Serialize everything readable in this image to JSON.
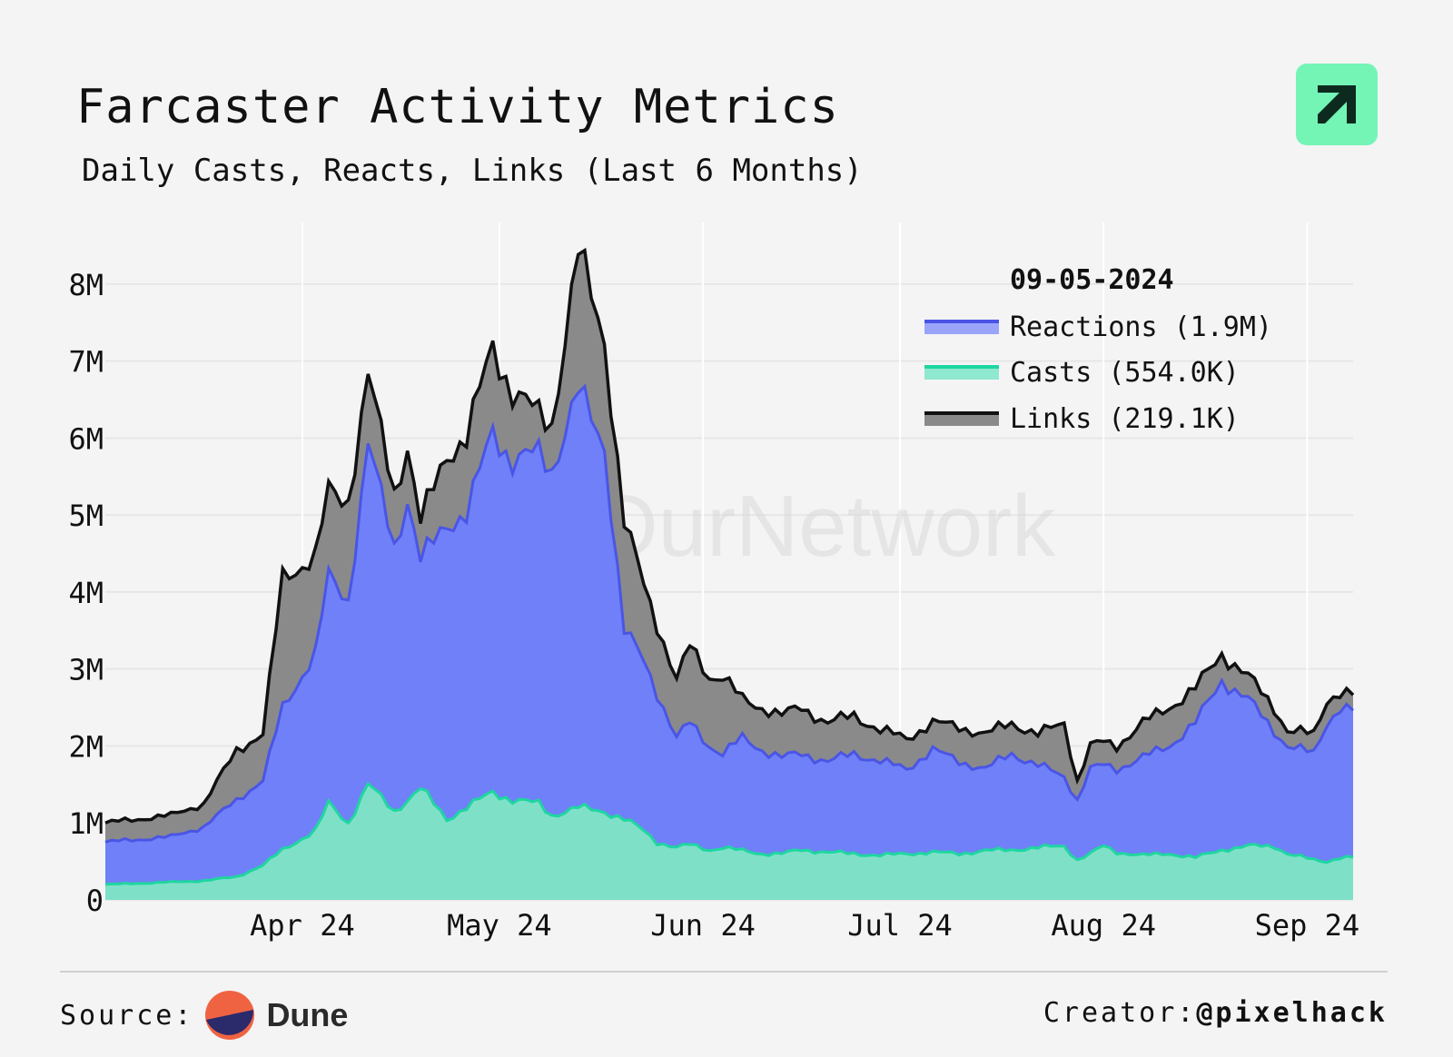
{
  "header": {
    "title": "Farcaster Activity Metrics",
    "subtitle": "Daily Casts, Reacts, Links (Last 6 Months)"
  },
  "footer": {
    "source_label": "Source:",
    "source_name": "Dune",
    "creator_label": "Creator:",
    "creator_handle": "@pixelhack"
  },
  "watermark": "OurNetwork",
  "colors": {
    "reactions": "#7080f8",
    "reactions_line": "#4a55e6",
    "casts": "#7fe0c8",
    "casts_line": "#1fd6a0",
    "links": "#8a8a8a",
    "links_line": "#111111",
    "logo": "#74f5b6"
  },
  "chart_data": {
    "type": "area",
    "stacked": true,
    "title": "Farcaster Activity Metrics",
    "subtitle": "Daily Casts, Reacts, Links (Last 6 Months)",
    "x_tick_labels": [
      "Apr 24",
      "May 24",
      "Jun 24",
      "Jul 24",
      "Aug 24",
      "Sep 24"
    ],
    "y_tick_labels": [
      "0",
      "1M",
      "2M",
      "3M",
      "4M",
      "5M",
      "6M",
      "7M",
      "8M"
    ],
    "y_ticks": [
      0,
      1000000,
      2000000,
      3000000,
      4000000,
      5000000,
      6000000,
      7000000,
      8000000
    ],
    "ylim": [
      0,
      8800000
    ],
    "grid": true,
    "legend_position": "top-right",
    "legend": {
      "date": "09-05-2024",
      "items": [
        {
          "key": "reactions",
          "label": "Reactions (1.9M)"
        },
        {
          "key": "casts",
          "label": "Casts (554.0K)"
        },
        {
          "key": "links",
          "label": "Links (219.1K)"
        }
      ]
    },
    "x_ticks_days": [
      30,
      60,
      91,
      121,
      152,
      183
    ],
    "series_cumulative_anchors": {
      "note": "day offsets from 2024-03-06; values are stacked cumulative tops (casts, casts+reactions, casts+reactions+links)",
      "days": [
        0,
        10,
        15,
        20,
        24,
        27,
        32,
        34,
        37,
        40,
        44,
        46,
        48,
        52,
        55,
        59,
        62,
        66,
        68,
        72,
        76,
        79,
        82,
        84,
        87,
        89,
        92,
        94,
        97,
        100,
        103,
        106,
        110,
        114,
        118,
        122,
        126,
        130,
        134,
        138,
        142,
        146,
        148,
        150,
        152,
        154,
        158,
        162,
        166,
        170,
        174,
        178,
        180,
        184,
        186,
        188,
        190
      ],
      "casts": [
        200000,
        230000,
        250000,
        300000,
        450000,
        650000,
        900000,
        1250000,
        1000000,
        1500000,
        1150000,
        1300000,
        1450000,
        1050000,
        1200000,
        1400000,
        1300000,
        1250000,
        1100000,
        1200000,
        1150000,
        1050000,
        900000,
        750000,
        680000,
        720000,
        650000,
        680000,
        640000,
        600000,
        600000,
        650000,
        620000,
        600000,
        580000,
        600000,
        620000,
        600000,
        640000,
        650000,
        680000,
        700000,
        520000,
        600000,
        700000,
        620000,
        580000,
        600000,
        550000,
        650000,
        700000,
        700000,
        600000,
        520000,
        500000,
        550000,
        550000
      ],
      "reactions_top": [
        750000,
        820000,
        950000,
        1300000,
        1550000,
        2500000,
        3200000,
        4200000,
        3900000,
        5900000,
        4600000,
        5200000,
        4400000,
        4900000,
        5000000,
        6100000,
        5700000,
        5800000,
        5600000,
        6600000,
        5900000,
        3500000,
        3100000,
        2700000,
        2100000,
        2300000,
        2000000,
        1900000,
        2100000,
        1950000,
        1850000,
        1900000,
        1800000,
        1900000,
        1800000,
        1700000,
        1950000,
        1800000,
        1700000,
        1900000,
        1750000,
        1600000,
        1300000,
        1700000,
        1750000,
        1700000,
        1850000,
        2000000,
        2300000,
        2850000,
        2600000,
        2200000,
        2000000,
        1900000,
        2300000,
        2500000,
        2450000
      ],
      "links_top": [
        1000000,
        1100000,
        1250000,
        1950000,
        2150000,
        4200000,
        4450000,
        5300000,
        5200000,
        6800000,
        5300000,
        5900000,
        4900000,
        5800000,
        6000000,
        7200000,
        6600000,
        6300000,
        6200000,
        8400000,
        7300000,
        4900000,
        4100000,
        3600000,
        2850000,
        3300000,
        2900000,
        2900000,
        2600000,
        2500000,
        2400000,
        2500000,
        2300000,
        2400000,
        2200000,
        2100000,
        2300000,
        2250000,
        2150000,
        2300000,
        2150000,
        2300000,
        1550000,
        2000000,
        2050000,
        2000000,
        2300000,
        2500000,
        2750000,
        3200000,
        2900000,
        2500000,
        2200000,
        2150000,
        2600000,
        2700000,
        2650000
      ]
    }
  }
}
